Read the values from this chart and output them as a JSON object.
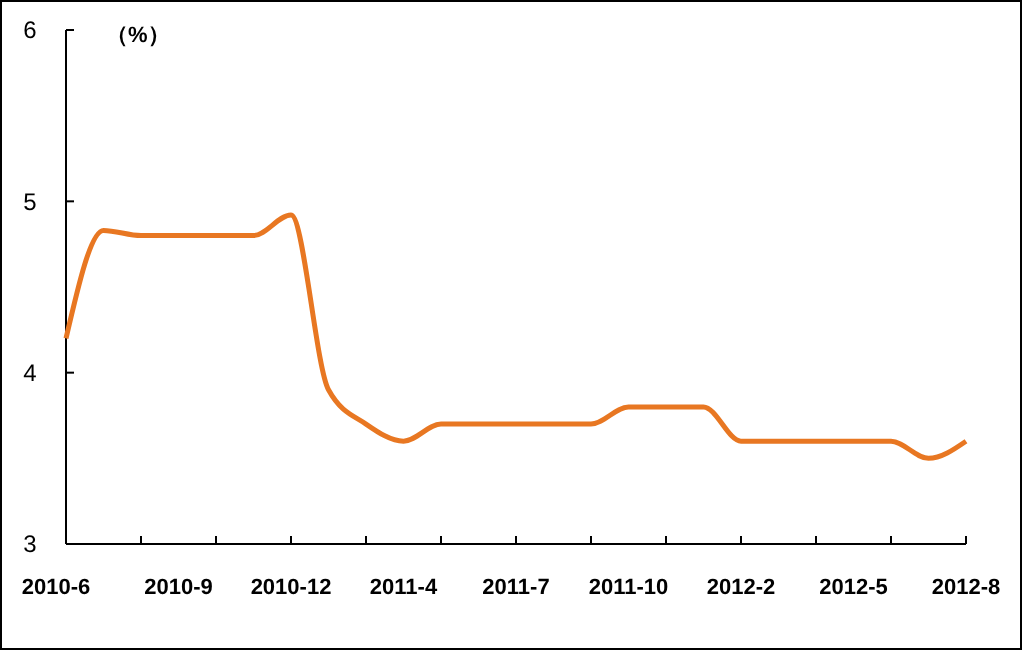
{
  "chart_data": {
    "type": "line",
    "ylabel": "（%）",
    "categories": [
      "2010-6",
      null,
      null,
      "2010-9",
      null,
      null,
      "2010-12",
      null,
      null,
      "2011-4",
      null,
      null,
      "2011-7",
      null,
      null,
      "2011-10",
      null,
      null,
      "2012-2",
      null,
      null,
      "2012-5",
      null,
      null,
      "2012-8"
    ],
    "series": [
      {
        "color": "#e87722",
        "values": [
          4.2,
          4.83,
          4.8,
          4.8,
          4.8,
          4.8,
          4.92,
          3.9,
          3.7,
          3.6,
          3.7,
          3.7,
          3.7,
          3.7,
          3.7,
          3.8,
          3.8,
          3.8,
          3.6,
          3.6,
          3.6,
          3.6,
          3.6,
          3.5,
          3.6
        ]
      }
    ],
    "ylim": [
      3,
      6
    ],
    "yticks": [
      3,
      4,
      5,
      6
    ],
    "grid": false,
    "marker": "none",
    "line_style": "solid"
  }
}
